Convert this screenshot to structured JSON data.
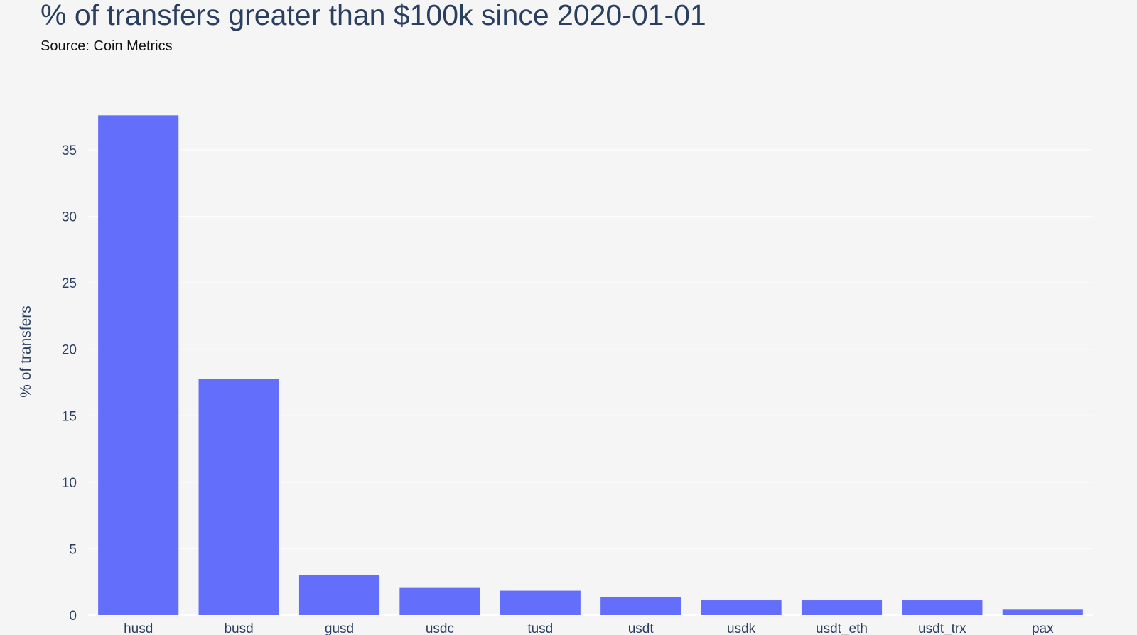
{
  "chart_data": {
    "type": "bar",
    "title": "% of transfers greater than $100k since 2020-01-01",
    "subtitle": "Source: Coin Metrics",
    "xlabel": "",
    "ylabel": "% of transfers",
    "categories": [
      "husd",
      "busd",
      "gusd",
      "usdc",
      "tusd",
      "usdt",
      "usdk",
      "usdt_eth",
      "usdt_trx",
      "pax"
    ],
    "values": [
      37.6,
      17.75,
      3.0,
      2.05,
      1.84,
      1.34,
      1.12,
      1.12,
      1.12,
      0.41
    ],
    "ylim": [
      0,
      38.5
    ],
    "yticks": [
      0,
      5,
      10,
      15,
      20,
      25,
      30,
      35
    ],
    "grid": true,
    "bar_color": "#636efa"
  }
}
